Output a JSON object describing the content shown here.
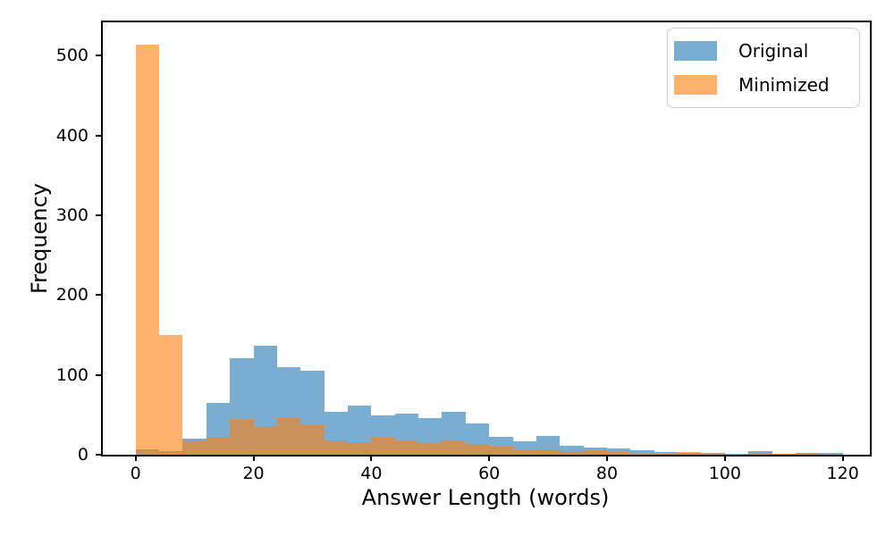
{
  "figure": {
    "background": "#ffffff"
  },
  "axes": {
    "xlabel": "Answer Length (words)",
    "ylabel": "Frequency"
  },
  "chart_data": {
    "type": "bar",
    "subtype": "overlaid-histogram",
    "title": "",
    "xlabel": "Answer Length (words)",
    "ylabel": "Frequency",
    "bin_width": 4,
    "bin_edges": [
      0,
      4,
      8,
      12,
      16,
      20,
      24,
      28,
      32,
      36,
      40,
      44,
      48,
      52,
      56,
      60,
      64,
      68,
      72,
      76,
      80,
      84,
      88,
      92,
      96,
      100,
      104,
      108,
      112,
      116,
      120
    ],
    "series": [
      {
        "name": "Original",
        "color": "#1f77b4",
        "alpha": 0.6,
        "counts": [
          7,
          5,
          20,
          65,
          121,
          137,
          110,
          105,
          54,
          62,
          49,
          51,
          46,
          54,
          39,
          22,
          17,
          23,
          11,
          9,
          8,
          6,
          3,
          2,
          2,
          1,
          4,
          1,
          2,
          2
        ]
      },
      {
        "name": "Minimized",
        "color": "#ff7f0e",
        "alpha": 0.6,
        "counts": [
          514,
          150,
          18,
          22,
          44,
          36,
          46,
          37,
          18,
          16,
          21,
          17,
          14,
          17,
          13,
          10,
          6,
          7,
          5,
          6,
          3,
          2,
          1,
          3,
          1,
          0,
          2,
          1,
          2,
          0
        ]
      }
    ],
    "x_ticks": [
      0,
      20,
      40,
      60,
      80,
      100,
      120
    ],
    "y_ticks": [
      0,
      100,
      200,
      300,
      400,
      500
    ],
    "xlim": [
      -5.72,
      124.6
    ],
    "ylim": [
      0,
      543
    ],
    "grid": false,
    "legend": {
      "position": "upper-right",
      "labels": [
        "Original",
        "Minimized"
      ]
    }
  }
}
